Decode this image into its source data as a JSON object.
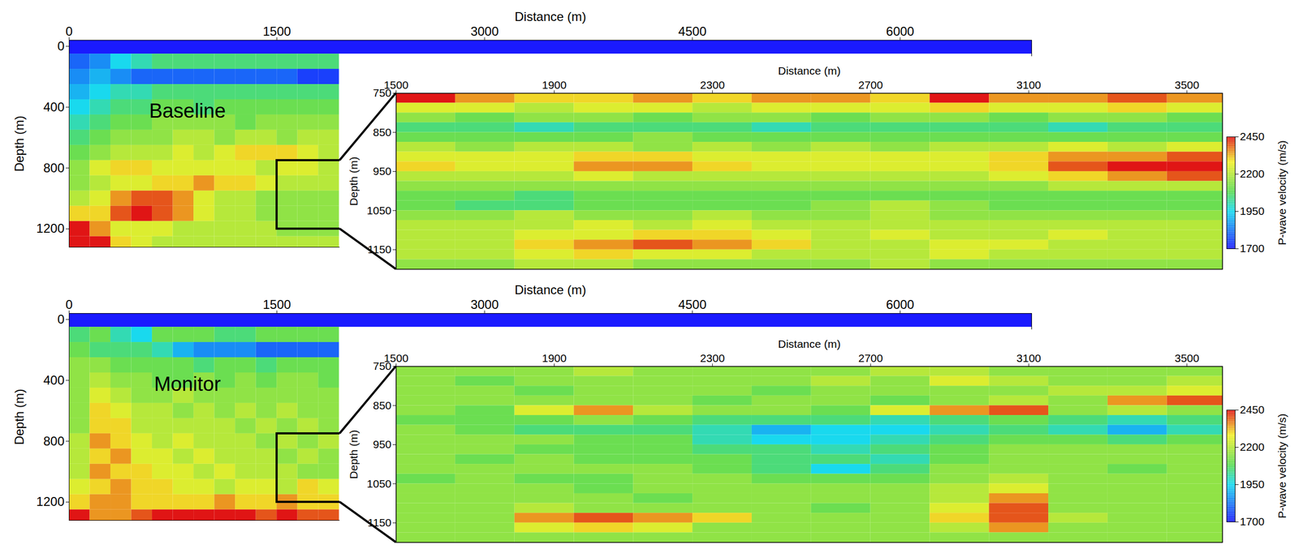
{
  "chart_data": [
    {
      "type": "heatmap",
      "annotation": "Baseline",
      "xlabel": "Distance (m)",
      "ylabel": "Depth (m)",
      "xlim": [
        0,
        6950
      ],
      "ylim": [
        -40,
        1320
      ],
      "xticks": [
        0,
        1500,
        3000,
        4500,
        6000
      ],
      "yticks": [
        0,
        400,
        800,
        1200
      ],
      "cells": [
        {
          "x1": 0,
          "x2": 6950,
          "y1": -40,
          "y2": 50,
          "value": 1700
        }
      ],
      "x_edges": [
        0,
        150,
        300,
        450,
        600,
        750,
        900,
        1050,
        1200,
        1350,
        1500,
        1650,
        1800,
        1950
      ],
      "y_edges": [
        50,
        150,
        250,
        350,
        450,
        550,
        650,
        750,
        850,
        950,
        1050,
        1150,
        1250,
        1320
      ],
      "values": [
        [
          1800,
          1850,
          1950,
          2000,
          2050,
          2050,
          2050,
          2050,
          2050,
          2050,
          2050,
          2050,
          2050
        ],
        [
          1850,
          1900,
          1850,
          1800,
          1800,
          1800,
          1800,
          1800,
          1800,
          1800,
          1800,
          1750,
          1750
        ],
        [
          1900,
          1950,
          2000,
          2000,
          2050,
          2050,
          2050,
          2050,
          2050,
          2050,
          2050,
          2050,
          2050
        ],
        [
          1950,
          2000,
          2050,
          2050,
          2100,
          2100,
          2050,
          2100,
          2100,
          2100,
          2100,
          2100,
          2100
        ],
        [
          2000,
          2050,
          2100,
          2100,
          2150,
          2150,
          2150,
          2150,
          2100,
          2150,
          2150,
          2150,
          2150
        ],
        [
          2050,
          2100,
          2150,
          2150,
          2150,
          2200,
          2200,
          2150,
          2200,
          2200,
          2150,
          2200,
          2200
        ],
        [
          2100,
          2150,
          2200,
          2200,
          2200,
          2250,
          2200,
          2250,
          2300,
          2300,
          2300,
          2250,
          2200
        ],
        [
          2150,
          2250,
          2300,
          2300,
          2250,
          2250,
          2250,
          2250,
          2250,
          2200,
          2250,
          2250,
          2200
        ],
        [
          2150,
          2200,
          2250,
          2250,
          2300,
          2300,
          2350,
          2300,
          2300,
          2250,
          2200,
          2200,
          2200
        ],
        [
          2200,
          2250,
          2350,
          2400,
          2400,
          2350,
          2250,
          2200,
          2200,
          2150,
          2150,
          2150,
          2150
        ],
        [
          2300,
          2300,
          2400,
          2450,
          2400,
          2350,
          2250,
          2200,
          2200,
          2150,
          2150,
          2150,
          2150
        ],
        [
          2450,
          2350,
          2250,
          2250,
          2250,
          2200,
          2200,
          2200,
          2200,
          2200,
          2150,
          2150,
          2150
        ],
        [
          2450,
          2450,
          2300,
          2250,
          2200,
          2200,
          2200,
          2200,
          2200,
          2200,
          2200,
          2200,
          2200
        ]
      ]
    },
    {
      "type": "heatmap",
      "xlabel": "Distance (m)",
      "ylabel": "Depth (m)",
      "xlim": [
        1500,
        3590
      ],
      "ylim": [
        750,
        1200
      ],
      "xticks": [
        1500,
        1900,
        2300,
        2700,
        3100,
        3500
      ],
      "yticks": [
        750,
        850,
        950,
        1050,
        1150
      ],
      "x_edges": [
        1500,
        1650,
        1800,
        1950,
        2100,
        2250,
        2400,
        2550,
        2700,
        2850,
        3000,
        3150,
        3300,
        3450,
        3600
      ],
      "y_edges": [
        750,
        775,
        800,
        825,
        850,
        875,
        900,
        925,
        950,
        975,
        1000,
        1025,
        1050,
        1075,
        1100,
        1125,
        1150,
        1175,
        1200
      ],
      "values": [
        [
          2450,
          2350,
          2300,
          2300,
          2350,
          2300,
          2350,
          2350,
          2300,
          2450,
          2350,
          2350,
          2400,
          2350
        ],
        [
          2250,
          2250,
          2200,
          2250,
          2250,
          2200,
          2250,
          2250,
          2250,
          2300,
          2250,
          2250,
          2300,
          2250
        ],
        [
          2150,
          2100,
          2150,
          2150,
          2100,
          2150,
          2150,
          2100,
          2150,
          2150,
          2100,
          2150,
          2150,
          2100
        ],
        [
          2050,
          2050,
          2000,
          2050,
          2050,
          2050,
          2000,
          2050,
          2050,
          2050,
          2050,
          2000,
          2050,
          2050
        ],
        [
          2100,
          2100,
          2100,
          2100,
          2150,
          2100,
          2100,
          2100,
          2100,
          2100,
          2100,
          2100,
          2100,
          2100
        ],
        [
          2200,
          2150,
          2200,
          2200,
          2150,
          2200,
          2150,
          2200,
          2150,
          2200,
          2200,
          2250,
          2200,
          2250
        ],
        [
          2250,
          2250,
          2250,
          2300,
          2300,
          2250,
          2250,
          2250,
          2250,
          2250,
          2300,
          2350,
          2350,
          2400
        ],
        [
          2300,
          2250,
          2250,
          2350,
          2350,
          2300,
          2250,
          2250,
          2250,
          2250,
          2300,
          2400,
          2450,
          2450
        ],
        [
          2200,
          2200,
          2200,
          2250,
          2200,
          2200,
          2200,
          2200,
          2200,
          2200,
          2250,
          2300,
          2350,
          2400
        ],
        [
          2150,
          2150,
          2150,
          2150,
          2150,
          2150,
          2150,
          2150,
          2150,
          2150,
          2150,
          2200,
          2200,
          2200
        ],
        [
          2100,
          2100,
          2050,
          2100,
          2100,
          2100,
          2100,
          2100,
          2100,
          2100,
          2100,
          2100,
          2100,
          2100
        ],
        [
          2100,
          2050,
          2050,
          2100,
          2100,
          2100,
          2100,
          2150,
          2200,
          2150,
          2100,
          2100,
          2100,
          2100
        ],
        [
          2150,
          2150,
          2200,
          2150,
          2150,
          2200,
          2150,
          2150,
          2200,
          2150,
          2150,
          2150,
          2150,
          2150
        ],
        [
          2200,
          2200,
          2200,
          2250,
          2200,
          2250,
          2200,
          2200,
          2200,
          2200,
          2200,
          2200,
          2200,
          2200
        ],
        [
          2200,
          2200,
          2250,
          2250,
          2300,
          2300,
          2250,
          2200,
          2250,
          2200,
          2200,
          2250,
          2200,
          2200
        ],
        [
          2200,
          2200,
          2300,
          2350,
          2400,
          2350,
          2300,
          2200,
          2200,
          2250,
          2250,
          2200,
          2200,
          2200
        ],
        [
          2200,
          2200,
          2250,
          2300,
          2250,
          2250,
          2200,
          2200,
          2200,
          2250,
          2200,
          2200,
          2200,
          2200
        ],
        [
          2150,
          2150,
          2200,
          2200,
          2150,
          2150,
          2150,
          2150,
          2200,
          2150,
          2150,
          2150,
          2150,
          2150
        ]
      ],
      "colorbar": {
        "label": "P-wave velocity (m/s)",
        "range": [
          1700,
          2450
        ],
        "ticks": [
          1700,
          1950,
          2200,
          2450
        ]
      }
    },
    {
      "type": "heatmap",
      "annotation": "Monitor",
      "xlabel": "Distance (m)",
      "ylabel": "Depth (m)",
      "xlim": [
        0,
        6950
      ],
      "ylim": [
        -40,
        1320
      ],
      "xticks": [
        0,
        1500,
        3000,
        4500,
        6000
      ],
      "yticks": [
        0,
        400,
        800,
        1200
      ],
      "cells": [
        {
          "x1": 0,
          "x2": 6950,
          "y1": -40,
          "y2": 50,
          "value": 1700
        }
      ],
      "x_edges": [
        0,
        150,
        300,
        450,
        600,
        750,
        900,
        1050,
        1200,
        1350,
        1500,
        1650,
        1800,
        1950
      ],
      "y_edges": [
        50,
        150,
        250,
        350,
        450,
        550,
        650,
        750,
        850,
        950,
        1050,
        1150,
        1250,
        1320
      ],
      "values": [
        [
          2050,
          2100,
          2000,
          1950,
          2100,
          2100,
          2100,
          2050,
          2050,
          2100,
          2100,
          2100,
          2100
        ],
        [
          2100,
          2050,
          2050,
          2050,
          2000,
          1900,
          1850,
          1850,
          1850,
          1800,
          1800,
          1800,
          1800
        ],
        [
          2150,
          2150,
          2100,
          2100,
          2100,
          2100,
          2050,
          2100,
          2100,
          2050,
          2100,
          2100,
          2100
        ],
        [
          2150,
          2200,
          2150,
          2150,
          2100,
          2100,
          2150,
          2100,
          2150,
          2100,
          2150,
          2150,
          2100
        ],
        [
          2150,
          2250,
          2200,
          2150,
          2150,
          2200,
          2150,
          2150,
          2150,
          2150,
          2150,
          2150,
          2150
        ],
        [
          2150,
          2300,
          2250,
          2200,
          2200,
          2150,
          2200,
          2150,
          2200,
          2150,
          2200,
          2150,
          2150
        ],
        [
          2150,
          2300,
          2300,
          2200,
          2200,
          2200,
          2200,
          2200,
          2150,
          2200,
          2150,
          2200,
          2150
        ],
        [
          2200,
          2350,
          2300,
          2250,
          2200,
          2250,
          2200,
          2200,
          2200,
          2150,
          2200,
          2150,
          2200
        ],
        [
          2200,
          2300,
          2350,
          2250,
          2250,
          2200,
          2250,
          2200,
          2200,
          2200,
          2150,
          2200,
          2150
        ],
        [
          2200,
          2350,
          2300,
          2300,
          2250,
          2250,
          2200,
          2250,
          2200,
          2200,
          2200,
          2150,
          2150
        ],
        [
          2250,
          2300,
          2350,
          2300,
          2300,
          2250,
          2250,
          2200,
          2250,
          2250,
          2200,
          2300,
          2250
        ],
        [
          2300,
          2350,
          2350,
          2300,
          2300,
          2300,
          2300,
          2350,
          2300,
          2300,
          2350,
          2300,
          2300
        ],
        [
          2450,
          2350,
          2350,
          2400,
          2450,
          2450,
          2450,
          2450,
          2450,
          2400,
          2450,
          2400,
          2400
        ]
      ]
    },
    {
      "type": "heatmap",
      "xlabel": "Distance (m)",
      "ylabel": "Depth (m)",
      "xlim": [
        1500,
        3590
      ],
      "ylim": [
        750,
        1200
      ],
      "xticks": [
        1500,
        1900,
        2300,
        2700,
        3100,
        3500
      ],
      "yticks": [
        750,
        850,
        950,
        1050,
        1150
      ],
      "x_edges": [
        1500,
        1650,
        1800,
        1950,
        2100,
        2250,
        2400,
        2550,
        2700,
        2850,
        3000,
        3150,
        3300,
        3450,
        3600
      ],
      "y_edges": [
        750,
        775,
        800,
        825,
        850,
        875,
        900,
        925,
        950,
        975,
        1000,
        1025,
        1050,
        1075,
        1100,
        1125,
        1150,
        1175,
        1200
      ],
      "values": [
        [
          2150,
          2150,
          2150,
          2200,
          2150,
          2150,
          2150,
          2150,
          2200,
          2200,
          2150,
          2150,
          2150,
          2150
        ],
        [
          2150,
          2100,
          2150,
          2150,
          2150,
          2150,
          2150,
          2200,
          2150,
          2250,
          2200,
          2150,
          2150,
          2200
        ],
        [
          2150,
          2150,
          2100,
          2150,
          2150,
          2150,
          2100,
          2150,
          2150,
          2150,
          2150,
          2200,
          2200,
          2250
        ],
        [
          2150,
          2150,
          2150,
          2150,
          2150,
          2100,
          2150,
          2150,
          2100,
          2150,
          2200,
          2150,
          2350,
          2400
        ],
        [
          2150,
          2100,
          2250,
          2350,
          2200,
          2150,
          2150,
          2100,
          2250,
          2350,
          2400,
          2150,
          2200,
          2150
        ],
        [
          2100,
          2100,
          2100,
          2150,
          2100,
          2050,
          2050,
          2050,
          2000,
          2050,
          2100,
          2050,
          2000,
          2050
        ],
        [
          2150,
          2100,
          2050,
          2050,
          2050,
          2000,
          1900,
          1950,
          1950,
          2000,
          2050,
          2000,
          1900,
          2000
        ],
        [
          2150,
          2150,
          2150,
          2100,
          2100,
          2000,
          1950,
          1950,
          2000,
          2050,
          2100,
          2100,
          2050,
          2100
        ],
        [
          2150,
          2150,
          2100,
          2100,
          2100,
          2050,
          2050,
          2000,
          2050,
          2100,
          2150,
          2150,
          2150,
          2150
        ],
        [
          2150,
          2100,
          2150,
          2100,
          2100,
          2100,
          2050,
          2050,
          2000,
          2100,
          2150,
          2150,
          2150,
          2150
        ],
        [
          2150,
          2150,
          2150,
          2150,
          2150,
          2100,
          2050,
          1950,
          2050,
          2150,
          2150,
          2150,
          2100,
          2150
        ],
        [
          2100,
          2150,
          2100,
          2100,
          2150,
          2150,
          2100,
          2100,
          2100,
          2150,
          2200,
          2150,
          2150,
          2150
        ],
        [
          2150,
          2150,
          2150,
          2100,
          2150,
          2150,
          2150,
          2150,
          2150,
          2200,
          2250,
          2150,
          2150,
          2150
        ],
        [
          2150,
          2150,
          2150,
          2150,
          2100,
          2150,
          2150,
          2150,
          2150,
          2200,
          2350,
          2150,
          2150,
          2150
        ],
        [
          2150,
          2150,
          2200,
          2150,
          2150,
          2150,
          2150,
          2100,
          2150,
          2250,
          2400,
          2150,
          2150,
          2150
        ],
        [
          2150,
          2150,
          2350,
          2400,
          2350,
          2300,
          2150,
          2150,
          2150,
          2300,
          2400,
          2200,
          2150,
          2150
        ],
        [
          2150,
          2150,
          2250,
          2300,
          2250,
          2150,
          2150,
          2150,
          2150,
          2200,
          2350,
          2150,
          2150,
          2150
        ],
        [
          2150,
          2150,
          2150,
          2150,
          2150,
          2150,
          2150,
          2150,
          2150,
          2150,
          2150,
          2150,
          2150,
          2150
        ]
      ],
      "colorbar": {
        "label": "P-wave velocity (m/s)",
        "range": [
          1700,
          2450
        ],
        "ticks": [
          1700,
          1950,
          2200,
          2450
        ]
      }
    }
  ]
}
